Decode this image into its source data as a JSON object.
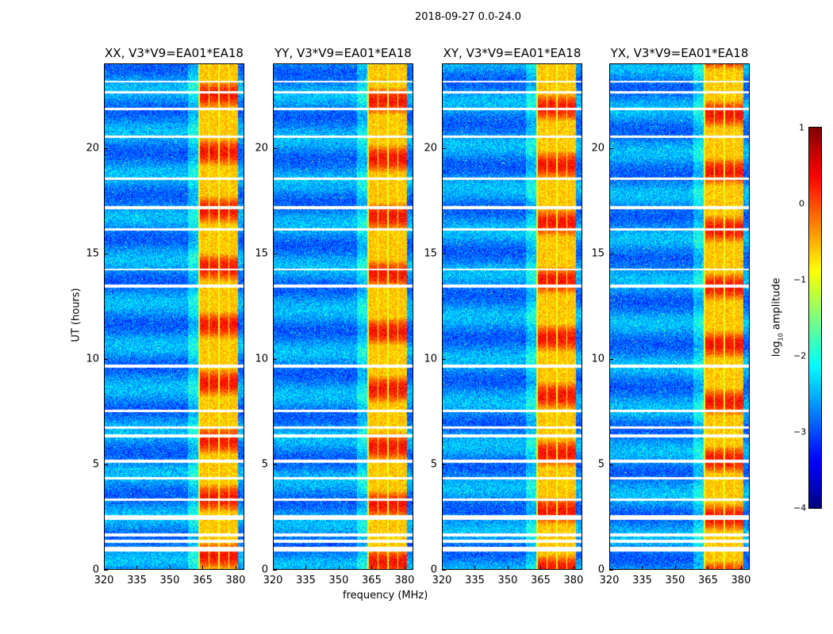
{
  "chart_data": {
    "type": "heatmap",
    "title": "2018-09-27 0.0-24.0",
    "xlabel": "frequency (MHz)",
    "ylabel": "UT (hours)",
    "xlim": [
      320,
      384
    ],
    "ylim": [
      0,
      24
    ],
    "xticks": [
      "320",
      "335",
      "350",
      "365",
      "380"
    ],
    "yticks": [
      "0",
      "5",
      "10",
      "15",
      "20"
    ],
    "panels": [
      {
        "title": "XX, V3*V9=EA01*EA18"
      },
      {
        "title": "YY, V3*V9=EA01*EA18"
      },
      {
        "title": "XY, V3*V9=EA01*EA18"
      },
      {
        "title": "YX, V3*V9=EA01*EA18"
      }
    ],
    "rfi_band_mhz": [
      363,
      381
    ],
    "flagged_times_hours": [
      [
        0.9,
        1.1
      ],
      [
        1.3,
        1.45
      ],
      [
        1.6,
        1.75
      ],
      [
        2.4,
        2.6
      ],
      [
        3.3,
        3.4
      ],
      [
        4.3,
        4.4
      ],
      [
        5.1,
        5.25
      ],
      [
        6.3,
        6.45
      ],
      [
        6.7,
        6.8
      ],
      [
        7.5,
        7.6
      ],
      [
        9.6,
        9.75
      ],
      [
        13.4,
        13.55
      ],
      [
        14.2,
        14.3
      ],
      [
        16.1,
        16.2
      ],
      [
        17.1,
        17.25
      ],
      [
        18.5,
        18.6
      ],
      [
        20.5,
        20.6
      ],
      [
        21.8,
        21.9
      ],
      [
        22.6,
        22.7
      ],
      [
        23.1,
        23.2
      ]
    ],
    "colorbar": {
      "label_prefix": "log",
      "label_sub": "10",
      "label_suffix": " amplitude",
      "range": [
        -4,
        1
      ],
      "ticks": [
        "1",
        "0",
        "−1",
        "−2",
        "−3",
        "−4"
      ],
      "colormap": "jet"
    }
  }
}
